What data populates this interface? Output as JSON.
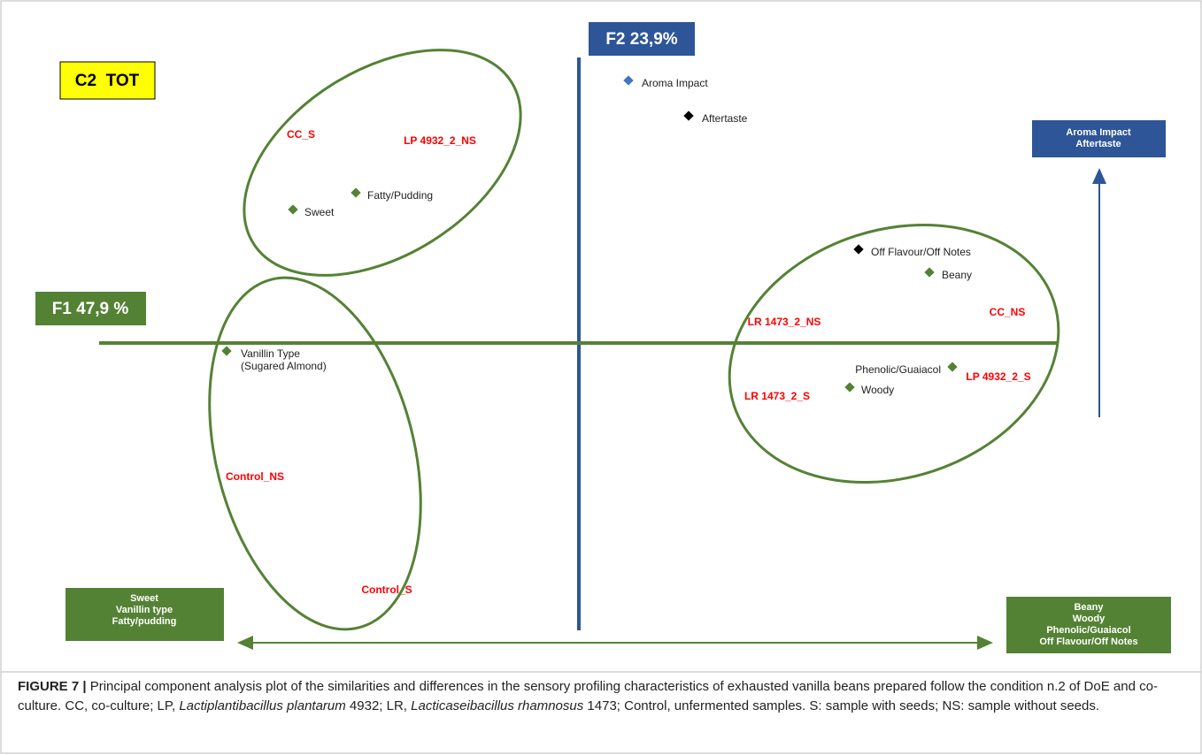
{
  "badges": {
    "group": "C2  TOT",
    "f2": "F2 23,9%",
    "f1": "F1 47,9 %"
  },
  "attributes": [
    {
      "lines": [
        "Aroma Impact"
      ],
      "color": "#4472c4"
    },
    {
      "lines": [
        "Aftertaste"
      ],
      "color": "#000000"
    },
    {
      "lines": [
        "Fatty/Pudding"
      ],
      "color": "#548235"
    },
    {
      "lines": [
        "Sweet"
      ],
      "color": "#548235"
    },
    {
      "lines": [
        "Off Flavour/Off Notes"
      ],
      "color": "#000000"
    },
    {
      "lines": [
        "Beany"
      ],
      "color": "#548235"
    },
    {
      "lines": [
        "Vanillin Type",
        "(Sugared Almond)"
      ],
      "color": "#548235"
    },
    {
      "lines": [
        "Phenolic/Guaiacol"
      ],
      "color": "#548235"
    },
    {
      "lines": [
        "Woody"
      ],
      "color": "#548235"
    }
  ],
  "samples": [
    "CC_S",
    "LP 4932_2_NS",
    "LR 1473_2_NS",
    "CC_NS",
    "LP 4932_2_S",
    "LR 1473_2_S",
    "Control_NS",
    "Control_S"
  ],
  "poles": {
    "top": [
      "Aroma Impact",
      "Aftertaste"
    ],
    "left": [
      "Sweet",
      "Vanillin type",
      "Fatty/pudding"
    ],
    "right": [
      "Beany",
      "Woody",
      "Phenolic/Guaiacol",
      "Off Flavour/Off Notes"
    ]
  },
  "caption": [
    {
      "text": "FIGURE 7 |",
      "style": "bold"
    },
    {
      "text": " Principal component analysis plot of the similarities and differences in the sensory profiling characteristics of exhausted vanilla beans prepared follow the condition n.2 of DoE and co-culture. CC, co-culture; LP, ",
      "style": "normal"
    },
    {
      "text": "Lactiplantibacillus plantarum",
      "style": "italic"
    },
    {
      "text": " 4932; LR, ",
      "style": "normal"
    },
    {
      "text": "Lacticaseibacillus rhamnosus",
      "style": "italic"
    },
    {
      "text": " 1473; Control, unfermented samples. S: sample with seeds; NS: sample without seeds.",
      "style": "normal"
    }
  ]
}
